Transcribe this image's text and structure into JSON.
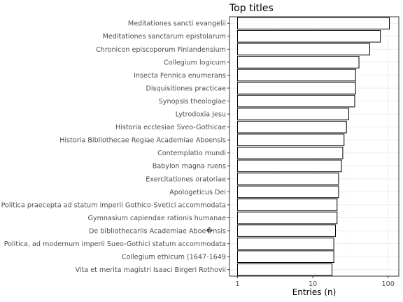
{
  "chart_data": {
    "type": "bar",
    "orientation": "horizontal",
    "title": "Top titles",
    "xlabel": "Entries (n)",
    "ylabel": "",
    "xscale": "log10",
    "xlim": [
      1,
      120
    ],
    "x_ticks": [
      1,
      10,
      100
    ],
    "x_tick_labels": [
      "1",
      "10",
      "100"
    ],
    "grid": true,
    "categories": [
      "Meditationes sancti evangelii",
      "Meditationes sanctarum epistolarum",
      "Chronicon episcoporum Finlandensium",
      "Collegium logicum",
      "Insecta Fennica enumerans",
      "Disquisitiones practicae",
      "Synopsis theologiae",
      "Lytrodoxia Jesu",
      "Historia ecclesiae Sveo-Gothicae",
      "Historia Bibliothecae Regiae Academiae Aboensis",
      "Contemplatio mundi",
      "Babylon magna ruens",
      "Exercitationes oratoriae",
      "Apologeticus Dei",
      "Politica praecepta ad statum imperii Gothico-Svetici accommodata",
      "Gymnasium capiendae rationis humanae",
      "De bibliothecariis Academiae Aboe�nsis",
      "Politica, ad modernum imperii Sueo-Gothici statum accommodata",
      "Collegium ethicum (1647-1649",
      "Vita et merita magistri Isaaci Birgeri Rothovii"
    ],
    "values": [
      104,
      79,
      57,
      41,
      37,
      37,
      36,
      30,
      28,
      26,
      25,
      24,
      22,
      22,
      21,
      21,
      20,
      19,
      19,
      18
    ]
  }
}
